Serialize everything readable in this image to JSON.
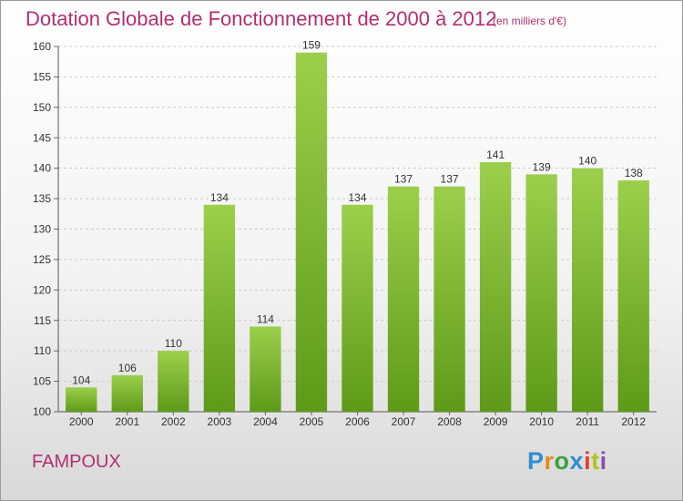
{
  "header": {
    "title": "Dotation Globale de Fonctionnement de 2000 à 2012",
    "subtitle": "(en milliers d'€)"
  },
  "footer": {
    "commune": "FAMPOUX",
    "logo_text": "Proxiti"
  },
  "colors": {
    "title": "#b0306e",
    "bar_top": "#9ccf4c",
    "bar_bottom": "#5e9a18",
    "grid": "#cccccc"
  },
  "chart_data": {
    "type": "bar",
    "title": "Dotation Globale de Fonctionnement de 2000 à 2012",
    "subtitle": "(en milliers d'€)",
    "xlabel": "",
    "ylabel": "",
    "categories": [
      "2000",
      "2001",
      "2002",
      "2003",
      "2004",
      "2005",
      "2006",
      "2007",
      "2008",
      "2009",
      "2010",
      "2011",
      "2012"
    ],
    "values": [
      104,
      106,
      110,
      134,
      114,
      159,
      134,
      137,
      137,
      141,
      139,
      140,
      138
    ],
    "ylim": [
      100,
      160
    ],
    "yticks": [
      100,
      105,
      110,
      115,
      120,
      125,
      130,
      135,
      140,
      145,
      150,
      155,
      160
    ],
    "grid": "horizontal dashed",
    "legend": "none"
  }
}
